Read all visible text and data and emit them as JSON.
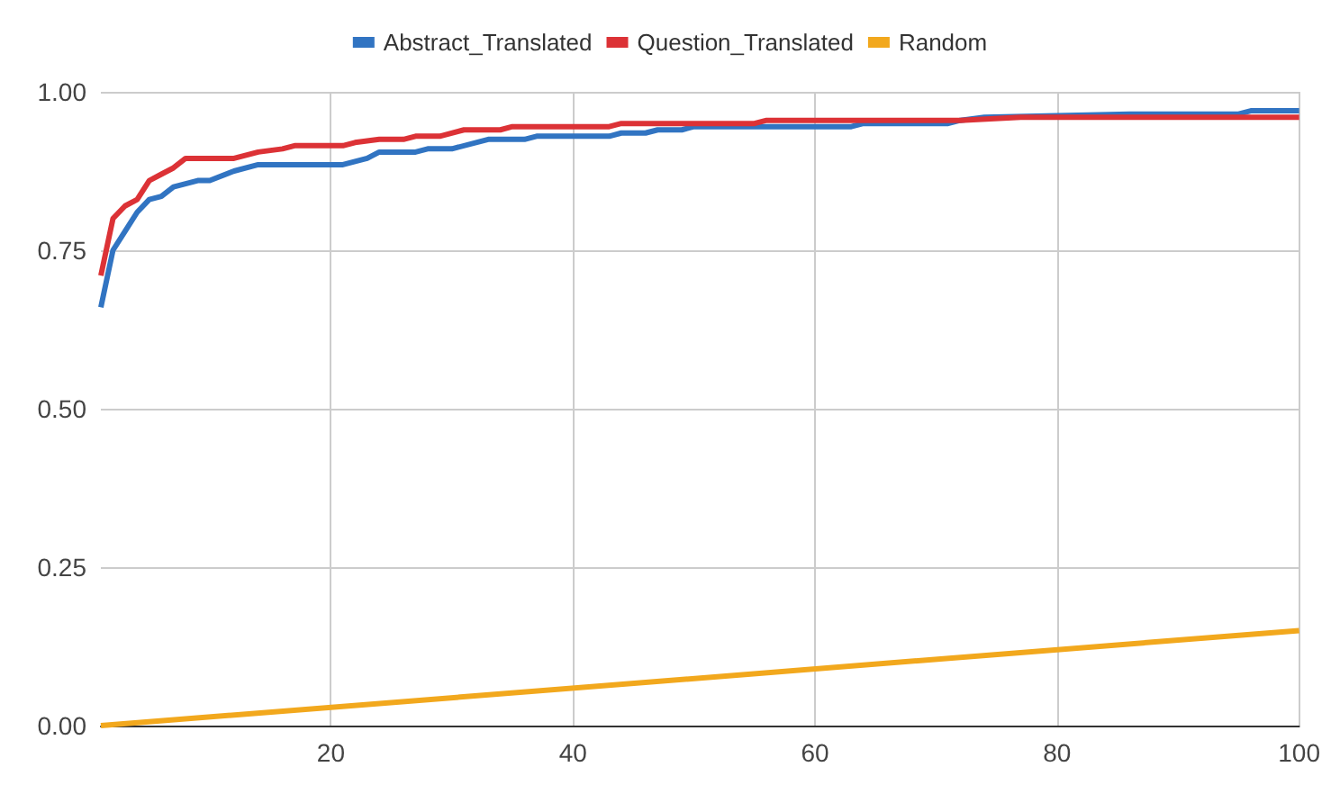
{
  "chart_data": {
    "type": "line",
    "legend": "top",
    "grid": true,
    "marker": "none",
    "line_style": "solid",
    "xlim": [
      1,
      100
    ],
    "xticks": [
      20,
      40,
      60,
      80,
      100
    ],
    "ylim": [
      0,
      1
    ],
    "yticks": [
      {
        "value": 0,
        "label": "0.00"
      },
      {
        "value": 0.25,
        "label": "0.25"
      },
      {
        "value": 0.5,
        "label": "0.50"
      },
      {
        "value": 0.75,
        "label": "0.75"
      },
      {
        "value": 1,
        "label": "1.00"
      }
    ],
    "series": [
      {
        "name": "Abstract_Translated",
        "color": "#3174c2",
        "x": [
          1,
          2,
          3,
          4,
          5,
          6,
          7,
          8,
          9,
          10,
          12,
          14,
          21,
          23,
          24,
          27,
          28,
          30,
          33,
          36,
          37,
          43,
          44,
          46,
          47,
          49,
          50,
          63,
          64,
          71,
          72,
          74,
          86,
          95,
          96,
          100
        ],
        "values": [
          0.66,
          0.75,
          0.78,
          0.81,
          0.83,
          0.835,
          0.85,
          0.855,
          0.86,
          0.86,
          0.875,
          0.885,
          0.885,
          0.895,
          0.905,
          0.905,
          0.91,
          0.91,
          0.925,
          0.925,
          0.93,
          0.93,
          0.935,
          0.935,
          0.94,
          0.94,
          0.945,
          0.945,
          0.95,
          0.95,
          0.955,
          0.96,
          0.965,
          0.965,
          0.97,
          0.97
        ]
      },
      {
        "name": "Question_Translated",
        "color": "#dc3236",
        "x": [
          1,
          2,
          3,
          4,
          5,
          6,
          7,
          8,
          12,
          14,
          16,
          17,
          21,
          22,
          24,
          26,
          27,
          29,
          31,
          34,
          35,
          43,
          44,
          55,
          56,
          72,
          77,
          100
        ],
        "values": [
          0.71,
          0.8,
          0.82,
          0.83,
          0.86,
          0.87,
          0.88,
          0.895,
          0.895,
          0.905,
          0.91,
          0.915,
          0.915,
          0.92,
          0.925,
          0.925,
          0.93,
          0.93,
          0.94,
          0.94,
          0.945,
          0.945,
          0.95,
          0.95,
          0.955,
          0.955,
          0.96,
          0.96
        ]
      },
      {
        "name": "Random",
        "color": "#f2a81d",
        "x": [
          1,
          100
        ],
        "values": [
          0,
          0.15
        ]
      }
    ]
  }
}
